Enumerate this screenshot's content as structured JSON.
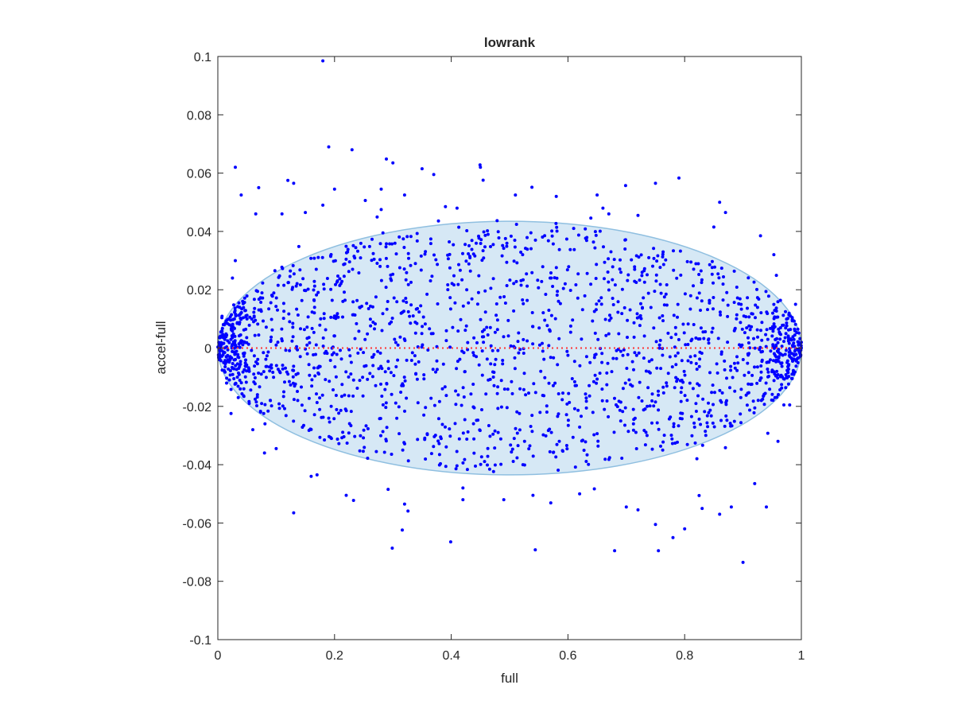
{
  "chart_data": {
    "type": "scatter",
    "title": "lowrank",
    "xlabel": "full",
    "ylabel": "accel-full",
    "xlim": [
      0,
      1
    ],
    "ylim": [
      -0.1,
      0.1
    ],
    "xticks": [
      0,
      0.2,
      0.4,
      0.6,
      0.8,
      1
    ],
    "xtick_labels": [
      "0",
      "0.2",
      "0.4",
      "0.6",
      "0.8",
      "1"
    ],
    "yticks": [
      -0.1,
      -0.08,
      -0.06,
      -0.04,
      -0.02,
      0,
      0.02,
      0.04,
      0.06,
      0.08,
      0.1
    ],
    "ytick_labels": [
      "-0.1",
      "-0.08",
      "-0.06",
      "-0.04",
      "-0.02",
      "0",
      "0.02",
      "0.04",
      "0.06",
      "0.08",
      "0.1"
    ],
    "grid": false,
    "box": true,
    "colors": {
      "points": "#0000ff",
      "reference_line": "#ff3333",
      "ellipse_fill": "#d6e8f5",
      "ellipse_edge": "#8fbfe0",
      "axes": "#262626"
    },
    "reference_line": {
      "y": 0,
      "style": "dotted"
    },
    "ellipse": {
      "center": [
        0.5,
        0
      ],
      "x_half_width": 0.5,
      "y_half_height": 0.0435
    },
    "point_count_estimate": 2000,
    "points_sampled": [
      [
        0.18,
        0.0985
      ],
      [
        0.19,
        0.069
      ],
      [
        0.23,
        0.068
      ],
      [
        0.03,
        0.062
      ],
      [
        0.3,
        0.0635
      ],
      [
        0.35,
        0.0615
      ],
      [
        0.37,
        0.0595
      ],
      [
        0.45,
        0.062
      ],
      [
        0.12,
        0.0575
      ],
      [
        0.2,
        0.0545
      ],
      [
        0.07,
        0.055
      ],
      [
        0.04,
        0.0525
      ],
      [
        0.28,
        0.0545
      ],
      [
        0.32,
        0.0525
      ],
      [
        0.51,
        0.0525
      ],
      [
        0.58,
        0.052
      ],
      [
        0.65,
        0.0525
      ],
      [
        0.75,
        0.0565
      ],
      [
        0.86,
        0.05
      ],
      [
        0.11,
        0.046
      ],
      [
        0.065,
        0.046
      ],
      [
        0.87,
        0.0465
      ],
      [
        0.15,
        0.0465
      ],
      [
        0.18,
        0.049
      ],
      [
        0.66,
        0.048
      ],
      [
        0.41,
        0.048
      ],
      [
        0.85,
        0.0415
      ],
      [
        0.93,
        0.0385
      ],
      [
        0.67,
        0.046
      ],
      [
        0.72,
        0.0455
      ],
      [
        0.28,
        0.0475
      ],
      [
        0.39,
        0.0485
      ],
      [
        0.13,
        0.0565
      ],
      [
        0.32,
        -0.0535
      ],
      [
        0.22,
        -0.0505
      ],
      [
        0.13,
        -0.0565
      ],
      [
        0.16,
        -0.044
      ],
      [
        0.17,
        -0.0435
      ],
      [
        0.1,
        -0.0345
      ],
      [
        0.08,
        -0.036
      ],
      [
        0.06,
        -0.028
      ],
      [
        0.42,
        -0.048
      ],
      [
        0.42,
        -0.052
      ],
      [
        0.49,
        -0.052
      ],
      [
        0.54,
        -0.0505
      ],
      [
        0.62,
        -0.05
      ],
      [
        0.7,
        -0.0545
      ],
      [
        0.72,
        -0.0555
      ],
      [
        0.68,
        -0.0695
      ],
      [
        0.75,
        -0.0605
      ],
      [
        0.755,
        -0.0695
      ],
      [
        0.78,
        -0.065
      ],
      [
        0.8,
        -0.062
      ],
      [
        0.83,
        -0.055
      ],
      [
        0.86,
        -0.057
      ],
      [
        0.88,
        -0.0545
      ],
      [
        0.9,
        -0.0735
      ],
      [
        0.92,
        -0.0465
      ],
      [
        0.94,
        -0.0545
      ],
      [
        0.96,
        -0.032
      ],
      [
        0.97,
        -0.0195
      ],
      [
        0.98,
        -0.0195
      ],
      [
        0.985,
        -0.0045
      ],
      [
        0.99,
        0.015
      ],
      [
        0.995,
        0.001
      ],
      [
        1.0,
        0.002
      ],
      [
        0.005,
        0.001
      ],
      [
        0.01,
        -0.005
      ],
      [
        0.02,
        0.008
      ],
      [
        0.015,
        -0.012
      ],
      [
        0.03,
        0.03
      ],
      [
        0.025,
        0.024
      ],
      [
        0.035,
        -0.017
      ],
      [
        0.05,
        0.01
      ],
      [
        0.09,
        -0.018
      ]
    ]
  }
}
